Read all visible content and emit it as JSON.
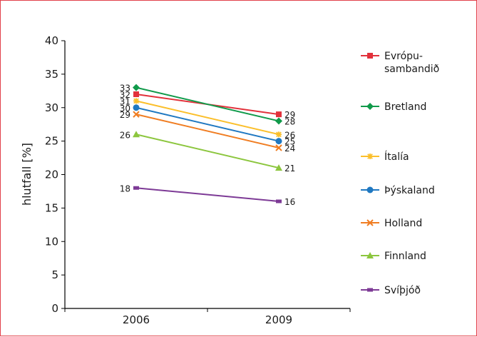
{
  "chart_data": {
    "type": "line",
    "ylabel": "hlutfall [%]",
    "xlabel": "",
    "x": [
      "2006",
      "2009"
    ],
    "ylim": [
      0,
      40
    ],
    "yticks": [
      0,
      5,
      10,
      15,
      20,
      25,
      30,
      35,
      40
    ],
    "grid": false,
    "legend_position": "right",
    "series": [
      {
        "name": "Evrópu-sambandið",
        "legend_lines": [
          "Evrópu-",
          "sambandið"
        ],
        "values": [
          32,
          29
        ],
        "color": "#e2313b",
        "marker": "square",
        "label_color": "#e2313b"
      },
      {
        "name": "Bretland",
        "legend_lines": [
          "Bretland"
        ],
        "values": [
          33,
          28
        ],
        "color": "#109a4a",
        "marker": "diamond",
        "label_color": "#1a1a1a"
      },
      {
        "name": "Ítalía",
        "legend_lines": [
          "Ítalía"
        ],
        "values": [
          31,
          26
        ],
        "color": "#fbbf2a",
        "marker": "star",
        "label_color": "#1a1a1a"
      },
      {
        "name": "Þýskaland",
        "legend_lines": [
          "Þýskaland"
        ],
        "values": [
          30,
          25
        ],
        "color": "#1f78c1",
        "marker": "circle",
        "label_color": "#1a1a1a"
      },
      {
        "name": "Holland",
        "legend_lines": [
          "Holland"
        ],
        "values": [
          29,
          24
        ],
        "color": "#f07d22",
        "marker": "x",
        "label_color": "#1a1a1a"
      },
      {
        "name": "Finnland",
        "legend_lines": [
          "Finnland"
        ],
        "values": [
          26,
          21
        ],
        "color": "#8cc63e",
        "marker": "triangle",
        "label_color": "#1a1a1a"
      },
      {
        "name": "Svíþjóð",
        "legend_lines": [
          "Svíþjóð"
        ],
        "values": [
          18,
          16
        ],
        "color": "#7d3a96",
        "marker": "bar",
        "label_color": "#1a1a1a"
      }
    ]
  }
}
